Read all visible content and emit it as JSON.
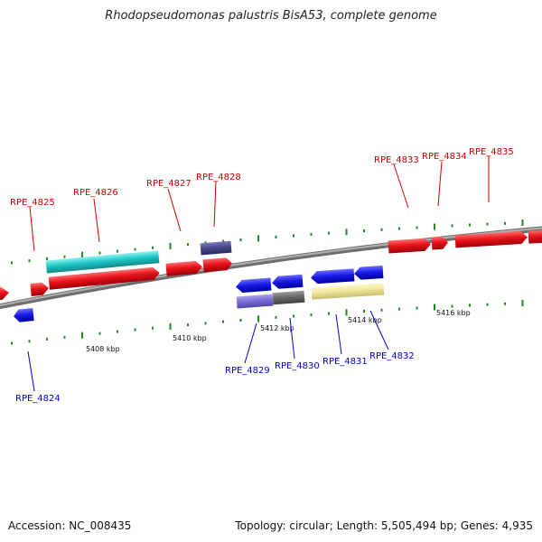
{
  "title": "Rhodopseudomonas palustris BisA53, complete genome",
  "footer": {
    "accession": "Accession: NC_008435",
    "topology": "Topology: circular; Length: 5,505,494 bp; Genes: 4,935"
  },
  "colors": {
    "forward_label": "#cc0000",
    "reverse_label": "#0000cc",
    "forward_gene": "#e8131a",
    "reverse_gene": "#1a1ae6",
    "cyan": "#1fc8c8",
    "slate": "#4a4a8c",
    "lavender": "#7a6fd6",
    "gray": "#6a6a6a",
    "khaki": "#efe69a",
    "backbone": "#8a8a8a",
    "tick_green": "#1f8a1f"
  },
  "scale_labels": [
    "5408 kbp",
    "5410 kbp",
    "5412 kbp",
    "5414 kbp",
    "5416 kbp"
  ],
  "gene_labels": [
    {
      "text": "RPE_4824",
      "strand": "reverse"
    },
    {
      "text": "RPE_4825",
      "strand": "forward"
    },
    {
      "text": "RPE_4826",
      "strand": "forward"
    },
    {
      "text": "RPE_4827",
      "strand": "forward"
    },
    {
      "text": "RPE_4828",
      "strand": "forward"
    },
    {
      "text": "RPE_4829",
      "strand": "reverse"
    },
    {
      "text": "RPE_4830",
      "strand": "reverse"
    },
    {
      "text": "RPE_4831",
      "strand": "reverse"
    },
    {
      "text": "RPE_4832",
      "strand": "reverse"
    },
    {
      "text": "RPE_4833",
      "strand": "forward"
    },
    {
      "text": "RPE_4834",
      "strand": "forward"
    },
    {
      "text": "RPE_4835",
      "strand": "forward"
    }
  ]
}
